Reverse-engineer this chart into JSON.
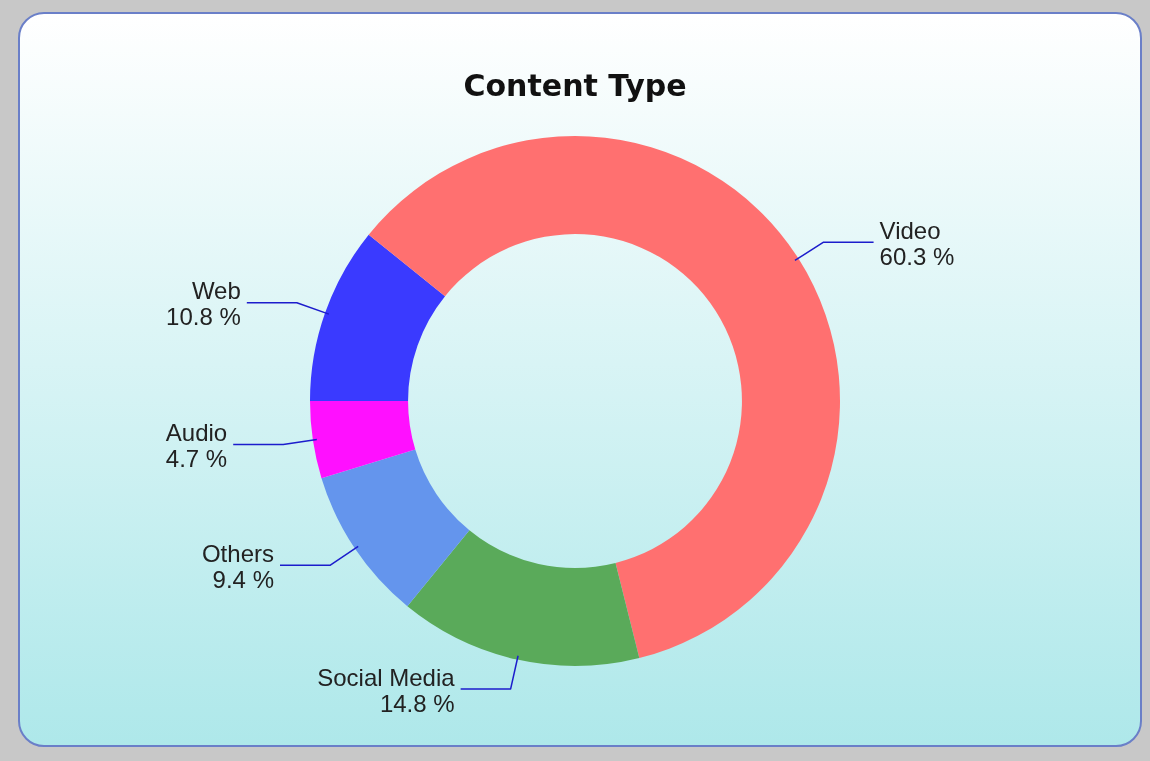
{
  "chart_data": {
    "type": "donut",
    "title": "Content Type",
    "categories": [
      "Web",
      "Video",
      "Social Media",
      "Others",
      "Audio"
    ],
    "values": [
      10.8,
      60.3,
      14.8,
      9.4,
      4.7
    ],
    "colors": [
      "#3a3aff",
      "#ff7070",
      "#5aaa5a",
      "#6495ed",
      "#ff10ff"
    ],
    "value_labels": [
      "10.8 %",
      "60.3 %",
      "14.8 %",
      "9.4 %",
      "4.7 %"
    ],
    "legend": false
  }
}
